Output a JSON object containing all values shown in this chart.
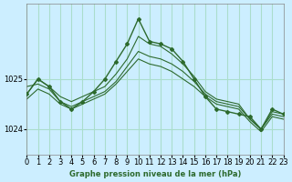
{
  "title": "Graphe pression niveau de la mer (hPa)",
  "bg_color": "#cceeff",
  "grid_color": "#aaddcc",
  "line_color": "#2d6a2d",
  "marker_color": "#2d6a2d",
  "xlim": [
    0,
    23
  ],
  "ylim": [
    1023.5,
    1026.5
  ],
  "yticks": [
    1024,
    1025
  ],
  "xticks": [
    0,
    1,
    2,
    3,
    4,
    5,
    6,
    7,
    8,
    9,
    10,
    11,
    12,
    13,
    14,
    15,
    16,
    17,
    18,
    19,
    20,
    21,
    22,
    23
  ],
  "series": [
    [
      1024.7,
      1025.0,
      1024.85,
      1024.65,
      1024.55,
      1024.65,
      1024.75,
      1024.85,
      1025.1,
      1025.4,
      1025.85,
      1025.7,
      1025.65,
      1025.5,
      1025.3,
      1025.05,
      1024.75,
      1024.6,
      1024.55,
      1024.5,
      1024.2,
      1024.0,
      1024.35,
      1024.3
    ],
    [
      1024.85,
      1024.9,
      1024.8,
      1024.55,
      1024.45,
      1024.55,
      1024.65,
      1024.75,
      1024.95,
      1025.25,
      1025.55,
      1025.45,
      1025.4,
      1025.3,
      1025.15,
      1024.95,
      1024.7,
      1024.55,
      1024.5,
      1024.45,
      1024.2,
      1024.0,
      1024.3,
      1024.25
    ],
    [
      1024.6,
      1024.8,
      1024.7,
      1024.5,
      1024.4,
      1024.5,
      1024.6,
      1024.7,
      1024.9,
      1025.15,
      1025.4,
      1025.3,
      1025.25,
      1025.15,
      1025.0,
      1024.85,
      1024.65,
      1024.5,
      1024.45,
      1024.4,
      1024.15,
      1023.95,
      1024.25,
      1024.2
    ]
  ],
  "main_series": [
    1024.7,
    1025.0,
    1024.85,
    1024.55,
    1024.4,
    1024.55,
    1024.75,
    1025.0,
    1025.35,
    1025.7,
    1026.2,
    1025.75,
    1025.7,
    1025.6,
    1025.35,
    1025.0,
    1024.65,
    1024.4,
    1024.35,
    1024.3,
    1024.25,
    1024.0,
    1024.4,
    1024.3
  ]
}
